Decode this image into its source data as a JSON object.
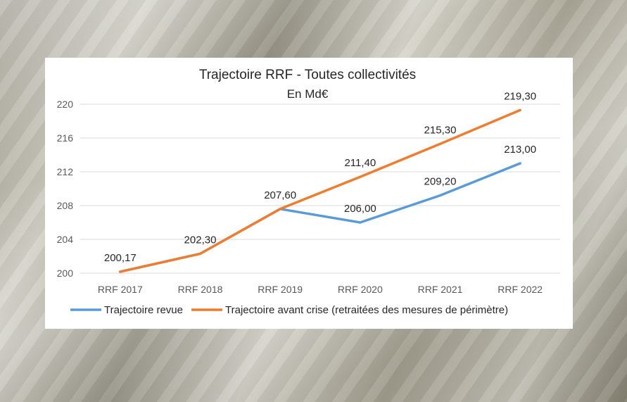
{
  "chart_data": {
    "type": "line",
    "title": "Trajectoire RRF - Toutes collectivités",
    "subtitle": "En Md€",
    "categories": [
      "RRF 2017",
      "RRF 2018",
      "RRF 2019",
      "RRF 2020",
      "RRF 2021",
      "RRF 2022"
    ],
    "ylim": [
      200,
      220
    ],
    "yticks": [
      200,
      204,
      208,
      212,
      216,
      220
    ],
    "grid": true,
    "legend_position": "bottom",
    "series": [
      {
        "name": "Trajectoire revue",
        "color": "#5b9bd5",
        "values": [
          200.17,
          202.3,
          207.6,
          206.0,
          209.2,
          213.0
        ],
        "labels": [
          "",
          "",
          "",
          "206,00",
          "209,20",
          "213,00"
        ]
      },
      {
        "name": "Trajectoire avant crise (retraitées des mesures de périmètre)",
        "color": "#ed7d31",
        "values": [
          200.17,
          202.3,
          207.6,
          211.4,
          215.3,
          219.3
        ],
        "labels": [
          "200,17",
          "202,30",
          "207,60",
          "211,40",
          "215,30",
          "219,30"
        ]
      }
    ]
  }
}
